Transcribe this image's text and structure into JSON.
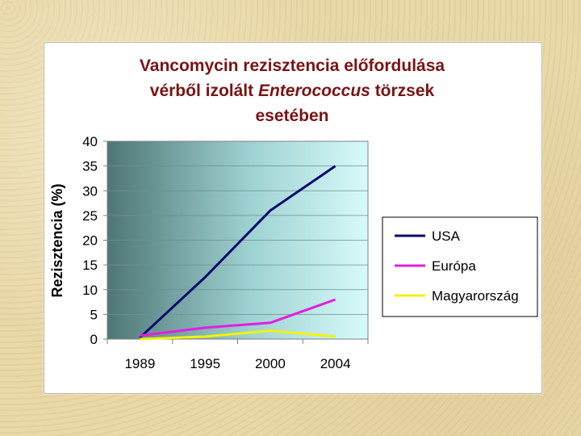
{
  "title": {
    "line1": "Vancomycin rezisztencia előfordulása",
    "line2_pre": "vérből izolált ",
    "line2_italic": "Enterococcus",
    "line2_post": " törzsek",
    "line3": "esetében"
  },
  "chart_data": {
    "type": "line",
    "categories": [
      "1989",
      "1995",
      "2000",
      "2004"
    ],
    "ylabel": "Rezisztencia (%)",
    "ylim": [
      0,
      40
    ],
    "yticks": [
      0,
      5,
      10,
      15,
      20,
      25,
      30,
      35,
      40
    ],
    "grid": true,
    "legend": "right",
    "series": [
      {
        "name": "USA",
        "color": "#0a0a6e",
        "values": [
          0.3,
          12.5,
          26,
          35
        ]
      },
      {
        "name": "Európa",
        "color": "#e020e0",
        "values": [
          0.7,
          2.3,
          3.3,
          8
        ]
      },
      {
        "name": "Magyarország",
        "color": "#f2f20a",
        "values": [
          0,
          0.5,
          1.7,
          0.5
        ]
      }
    ]
  }
}
